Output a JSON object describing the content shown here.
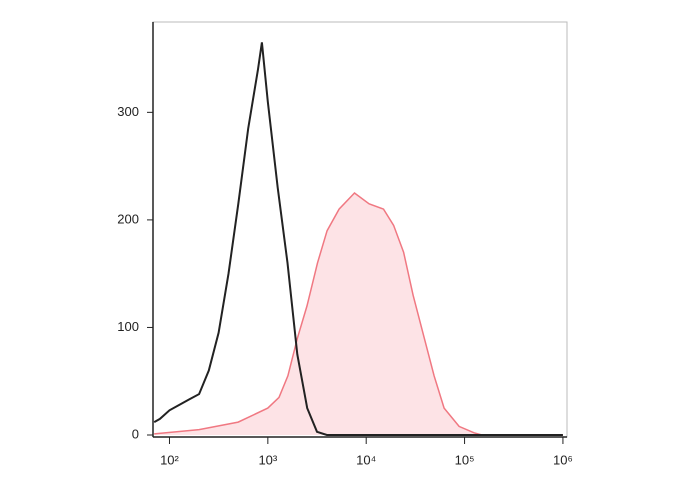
{
  "chart_data": {
    "type": "histogram-overlay",
    "xscale": "log",
    "xlim": [
      68,
      1100000
    ],
    "ylim": [
      0,
      384
    ],
    "xticks": [
      {
        "value": 100,
        "label": "10²"
      },
      {
        "value": 1000,
        "label": "10³"
      },
      {
        "value": 10000,
        "label": "10⁴"
      },
      {
        "value": 100000,
        "label": "10⁵"
      },
      {
        "value": 1000000,
        "label": "10⁶"
      }
    ],
    "yticks": [
      0,
      100,
      200,
      300
    ],
    "series": [
      {
        "color": "#222222",
        "fill": "none",
        "x": [
          70,
          80,
          100,
          126,
          158,
          200,
          251,
          316,
          398,
          501,
          631,
          794,
          870,
          1000,
          1259,
          1585,
          1995,
          2512,
          3162,
          3981,
          10000,
          100000,
          1000000
        ],
        "values": [
          12,
          15,
          23,
          28,
          33,
          38,
          60,
          95,
          150,
          215,
          285,
          340,
          365,
          310,
          230,
          160,
          75,
          25,
          3,
          0,
          0,
          0,
          0
        ]
      },
      {
        "color": "#f07882",
        "fill": "#fde3e6",
        "x": [
          70,
          200,
          500,
          1000,
          1300,
          1600,
          2000,
          2500,
          3200,
          4000,
          5300,
          7600,
          10700,
          15000,
          19000,
          24000,
          30000,
          39000,
          49000,
          62000,
          88000,
          125000,
          150000,
          1000000
        ],
        "values": [
          1,
          5,
          12,
          25,
          35,
          55,
          90,
          120,
          160,
          190,
          210,
          225,
          215,
          210,
          195,
          170,
          130,
          90,
          55,
          25,
          8,
          2,
          0,
          0
        ]
      }
    ]
  }
}
